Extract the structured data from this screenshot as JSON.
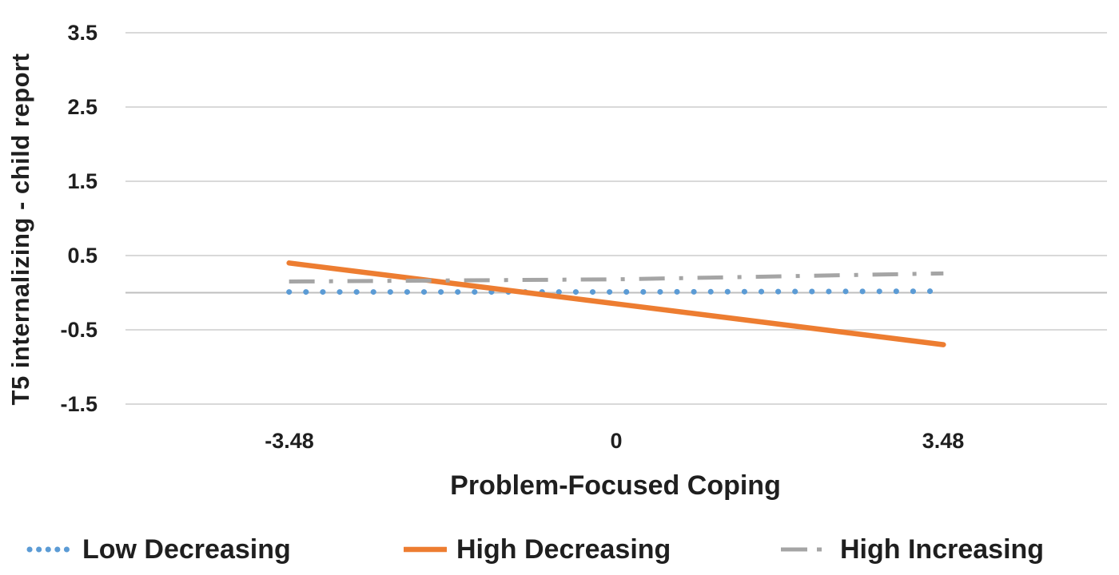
{
  "chart_data": {
    "type": "line",
    "title": "",
    "xlabel": "Problem-Focused Coping",
    "ylabel": "T5 internalizing - child report",
    "categories": [
      "-3.48",
      "0",
      "3.48"
    ],
    "x_values": [
      -3.48,
      0,
      3.48
    ],
    "ytick_labels": [
      "3.5",
      "2.5",
      "1.5",
      "0.5",
      "-0.5",
      "-1.5"
    ],
    "yticks": [
      3.5,
      2.5,
      1.5,
      0.5,
      -0.5,
      -1.5
    ],
    "ylim": [
      -1.5,
      3.5
    ],
    "grid": "horizontal-only",
    "zero_axis_line": true,
    "legend_position": "bottom",
    "series": [
      {
        "name": "Low Decreasing",
        "color": "#5B9BD5",
        "style": "dotted",
        "values": [
          0.01,
          0.01,
          0.02
        ]
      },
      {
        "name": "High Decreasing",
        "color": "#ED7D31",
        "style": "solid",
        "values": [
          0.4,
          -0.15,
          -0.7
        ]
      },
      {
        "name": "High Increasing",
        "color": "#A5A5A5",
        "style": "dash-dot",
        "values": [
          0.15,
          0.18,
          0.26
        ]
      }
    ],
    "colors": {
      "gridline": "#D9D9D9",
      "zero_line": "#BFBFBF",
      "text": "#1F1F1F",
      "background": "#FFFFFF"
    }
  }
}
